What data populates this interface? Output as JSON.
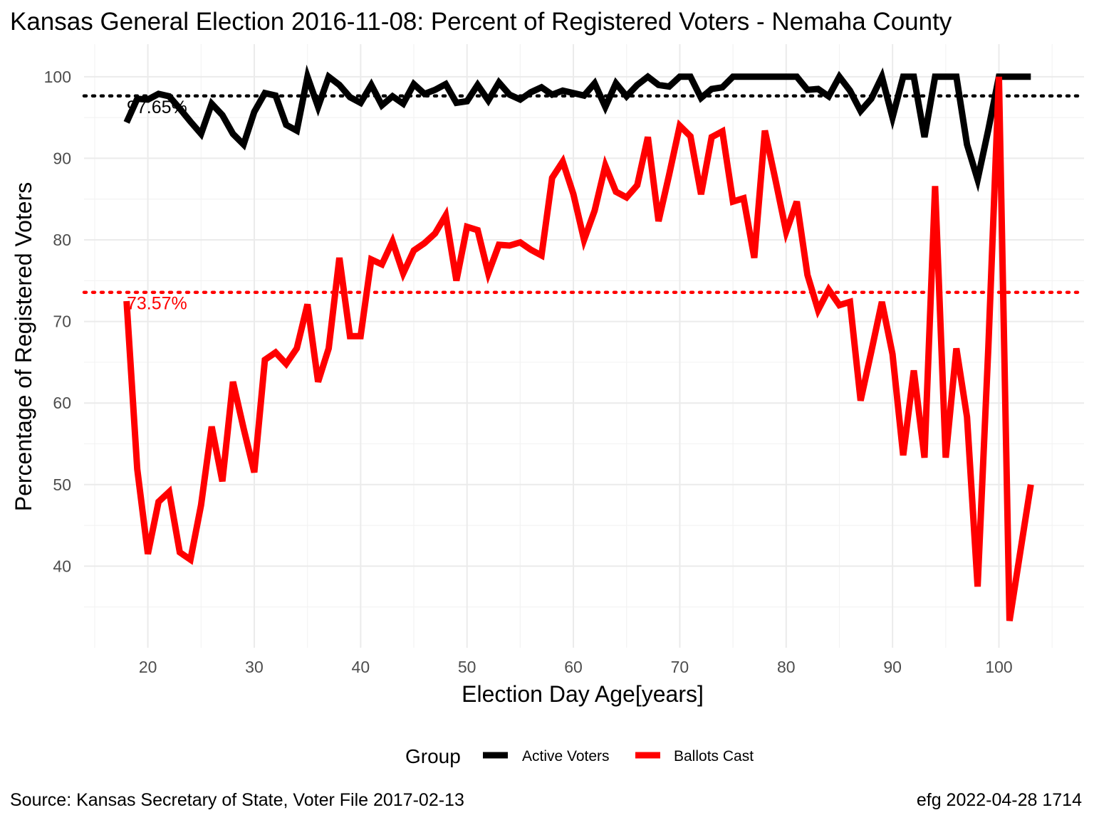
{
  "title": "Kansas General Election 2016-11-08:  Percent of Registered Voters - Nemaha County",
  "caption_left": "Source:  Kansas Secretary of State, Voter File  2017-02-13",
  "caption_right": "efg 2022-04-28 1714",
  "legend": {
    "title": "Group",
    "items": [
      {
        "label": "Active Voters",
        "color": "#000000"
      },
      {
        "label": "Ballots Cast",
        "color": "#ff0000"
      }
    ]
  },
  "chart_data": {
    "type": "line",
    "title": "Kansas General Election 2016-11-08:  Percent of Registered Voters - Nemaha County",
    "xlabel": "Election Day Age[years]",
    "ylabel": "Percentage of Registered Voters",
    "xlim": [
      14,
      108
    ],
    "ylim": [
      30,
      104
    ],
    "x_ticks": [
      20,
      30,
      40,
      50,
      60,
      70,
      80,
      90,
      100
    ],
    "y_ticks": [
      40,
      50,
      60,
      70,
      80,
      90,
      100
    ],
    "grid": true,
    "legend_position": "bottom",
    "reference_lines": [
      {
        "value": 97.65,
        "label": "97.65%",
        "color": "#000000",
        "style": "dotted"
      },
      {
        "value": 73.57,
        "label": "73.57%",
        "color": "#ff0000",
        "style": "dotted"
      }
    ],
    "series": [
      {
        "name": "Active Voters",
        "color": "#000000",
        "x": [
          18,
          19,
          20,
          21,
          22,
          23,
          24,
          25,
          26,
          27,
          28,
          29,
          30,
          31,
          32,
          33,
          34,
          35,
          36,
          37,
          38,
          39,
          40,
          41,
          42,
          43,
          44,
          45,
          46,
          47,
          48,
          49,
          50,
          51,
          52,
          53,
          54,
          55,
          56,
          57,
          58,
          59,
          60,
          61,
          62,
          63,
          64,
          65,
          66,
          67,
          68,
          69,
          70,
          71,
          72,
          73,
          74,
          75,
          76,
          77,
          78,
          79,
          80,
          81,
          82,
          83,
          84,
          85,
          86,
          87,
          88,
          89,
          90,
          91,
          92,
          93,
          94,
          95,
          96,
          97,
          98,
          99,
          100,
          101,
          102,
          103
        ],
        "values": [
          94.4,
          97.3,
          97.2,
          97.9,
          97.6,
          96.1,
          94.5,
          93.0,
          96.7,
          95.3,
          93.0,
          91.7,
          95.7,
          98.0,
          97.7,
          94.1,
          93.4,
          100,
          96.3,
          100,
          99.0,
          97.5,
          96.8,
          99.0,
          96.5,
          97.6,
          96.7,
          99.1,
          97.9,
          98.4,
          99.1,
          96.8,
          97.0,
          99.0,
          97.1,
          99.3,
          97.8,
          97.2,
          98.1,
          98.7,
          97.8,
          98.3,
          98.0,
          97.7,
          99.2,
          96.3,
          99.2,
          97.6,
          99.0,
          100,
          99.0,
          98.8,
          100,
          100,
          97.4,
          98.5,
          98.7,
          100,
          100,
          100,
          100,
          100,
          100,
          100,
          98.4,
          98.5,
          97.6,
          100,
          98.3,
          95.8,
          97.3,
          100,
          95.0,
          100,
          100,
          92.6,
          100,
          100,
          100,
          91.7,
          87.4,
          93.5,
          100,
          100,
          100,
          100
        ]
      },
      {
        "name": "Ballots Cast",
        "color": "#ff0000",
        "x": [
          18,
          19,
          20,
          21,
          22,
          23,
          24,
          25,
          26,
          27,
          28,
          29,
          30,
          31,
          32,
          33,
          34,
          35,
          36,
          37,
          38,
          39,
          40,
          41,
          42,
          43,
          44,
          45,
          46,
          47,
          48,
          49,
          50,
          51,
          52,
          53,
          54,
          55,
          56,
          57,
          58,
          59,
          60,
          61,
          62,
          63,
          64,
          65,
          66,
          67,
          68,
          69,
          70,
          71,
          72,
          73,
          74,
          75,
          76,
          77,
          78,
          79,
          80,
          81,
          82,
          83,
          84,
          85,
          86,
          87,
          88,
          89,
          90,
          91,
          92,
          93,
          94,
          95,
          96,
          97,
          98,
          99,
          100,
          101,
          102,
          103
        ],
        "values": [
          72.5,
          51.9,
          41.5,
          47.9,
          49.1,
          41.7,
          40.8,
          47.5,
          57.1,
          50.4,
          62.6,
          56.9,
          51.5,
          65.3,
          66.2,
          64.8,
          66.7,
          72.1,
          62.6,
          66.7,
          77.8,
          68.2,
          68.2,
          77.6,
          77.0,
          79.8,
          75.9,
          78.7,
          79.6,
          80.8,
          83.0,
          75.0,
          81.6,
          81.2,
          75.9,
          79.4,
          79.3,
          79.7,
          78.8,
          78.1,
          87.6,
          89.6,
          85.6,
          80.0,
          83.6,
          89.1,
          85.9,
          85.2,
          86.7,
          92.6,
          82.3,
          88.0,
          94.0,
          92.7,
          85.6,
          92.6,
          93.3,
          84.7,
          85.1,
          77.8,
          93.4,
          87.3,
          81.0,
          84.7,
          75.7,
          71.4,
          73.9,
          72.0,
          72.4,
          60.3,
          66.3,
          72.4,
          66.0,
          53.6,
          64.0,
          53.3,
          86.6,
          53.3,
          66.7,
          58.3,
          37.5,
          66.7,
          100,
          33.3,
          41.7,
          50.0
        ]
      }
    ]
  }
}
